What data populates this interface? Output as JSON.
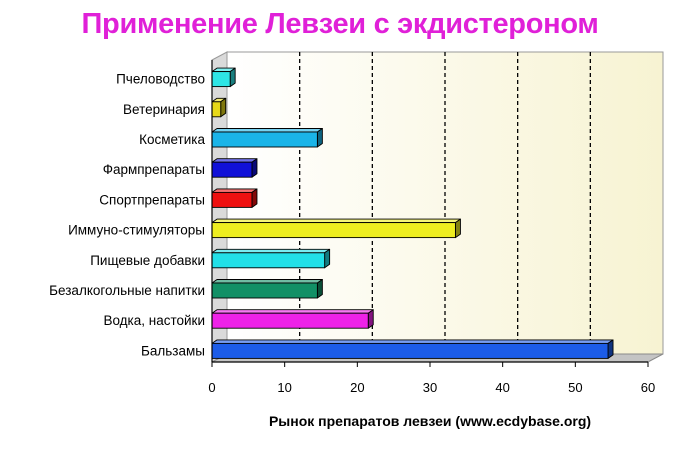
{
  "chart_data": {
    "type": "bar",
    "orientation": "horizontal",
    "title": "Применение Левзеи с экдистероном",
    "xlabel": "Рынок препаратов левзеи (www.ecdybase.org)",
    "ylabel": "",
    "xlim": [
      0,
      60
    ],
    "x_ticks": [
      0,
      10,
      20,
      30,
      40,
      50,
      60
    ],
    "grid": "vertical dashed",
    "categories": [
      "Пчеловодство",
      "Ветеринария",
      "Косметика",
      "Фармпрепараты",
      "Спортпрепараты",
      "Иммуно-стимуляторы",
      "Пищевые добавки",
      "Безалкогольные напитки",
      "Водка, настойки",
      "Бальзамы"
    ],
    "values": [
      2.5,
      1.2,
      14.5,
      5.5,
      5.5,
      33.5,
      15.5,
      14.5,
      21.5,
      54.5
    ],
    "colors": [
      "#2ee6e6",
      "#e6d818",
      "#1ab4e8",
      "#1010d8",
      "#ee1010",
      "#eeee20",
      "#22e0e8",
      "#129066",
      "#ee22e8",
      "#1c5ce8"
    ]
  }
}
